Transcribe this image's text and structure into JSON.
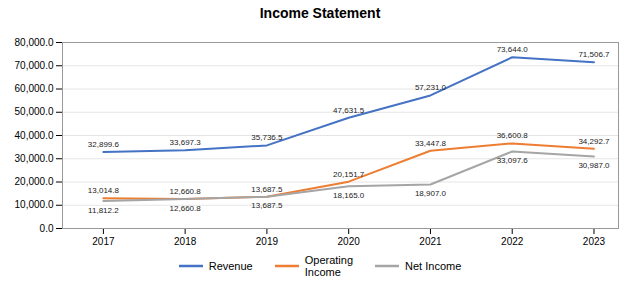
{
  "chart_data": {
    "type": "line",
    "title": "Income Statement",
    "x": [
      2017,
      2018,
      2019,
      2020,
      2021,
      2022,
      2023
    ],
    "series": [
      {
        "name": "Revenue",
        "color": "#4472C4",
        "values": [
          32899.6,
          33697.3,
          35736.5,
          47631.5,
          57231.0,
          73644.0,
          71506.7
        ],
        "value_labels": [
          "32,899.6",
          "33,697.3",
          "35,736.5",
          "47,631.5",
          "57,231.0",
          "73,644.0",
          "71,506.7"
        ]
      },
      {
        "name": "Operating\nIncome",
        "color": "#ED7D31",
        "values": [
          13014.8,
          12660.8,
          13687.5,
          20151.7,
          33447.8,
          36600.8,
          34292.7
        ],
        "value_labels": [
          "13,014.8",
          "12,660.8",
          "13,687.5",
          "20,151.7",
          "33,447.8",
          "36,600.8",
          "34,292.7"
        ]
      },
      {
        "name": "Net Income",
        "color": "#A5A5A5",
        "values": [
          11812.2,
          12660.8,
          13687.5,
          18165.0,
          18907.0,
          33097.6,
          30987.0
        ],
        "value_labels": [
          "11,812.2",
          "12,660.8",
          "13,687.5",
          "18,165.0",
          "18,907.0",
          "33,097.6",
          "30,987.0"
        ]
      }
    ],
    "xlim": [
      2016.5,
      2023.3
    ],
    "xticks": [
      2017,
      2018,
      2019,
      2020,
      2021,
      2022,
      2023
    ],
    "ylim": [
      0,
      80000
    ],
    "yticks": [
      {
        "value": 0,
        "label": "0.0"
      },
      {
        "value": 10000,
        "label": "10,000.0"
      },
      {
        "value": 20000,
        "label": "20,000.0"
      },
      {
        "value": 30000,
        "label": "30,000.0"
      },
      {
        "value": 40000,
        "label": "40,000.0"
      },
      {
        "value": 50000,
        "label": "50,000.0"
      },
      {
        "value": 60000,
        "label": "60,000.0"
      },
      {
        "value": 70000,
        "label": "70,000.0"
      },
      {
        "value": 80000,
        "label": "80,000.0"
      }
    ],
    "grid": true,
    "data_labels": true,
    "legend": "bottom"
  }
}
